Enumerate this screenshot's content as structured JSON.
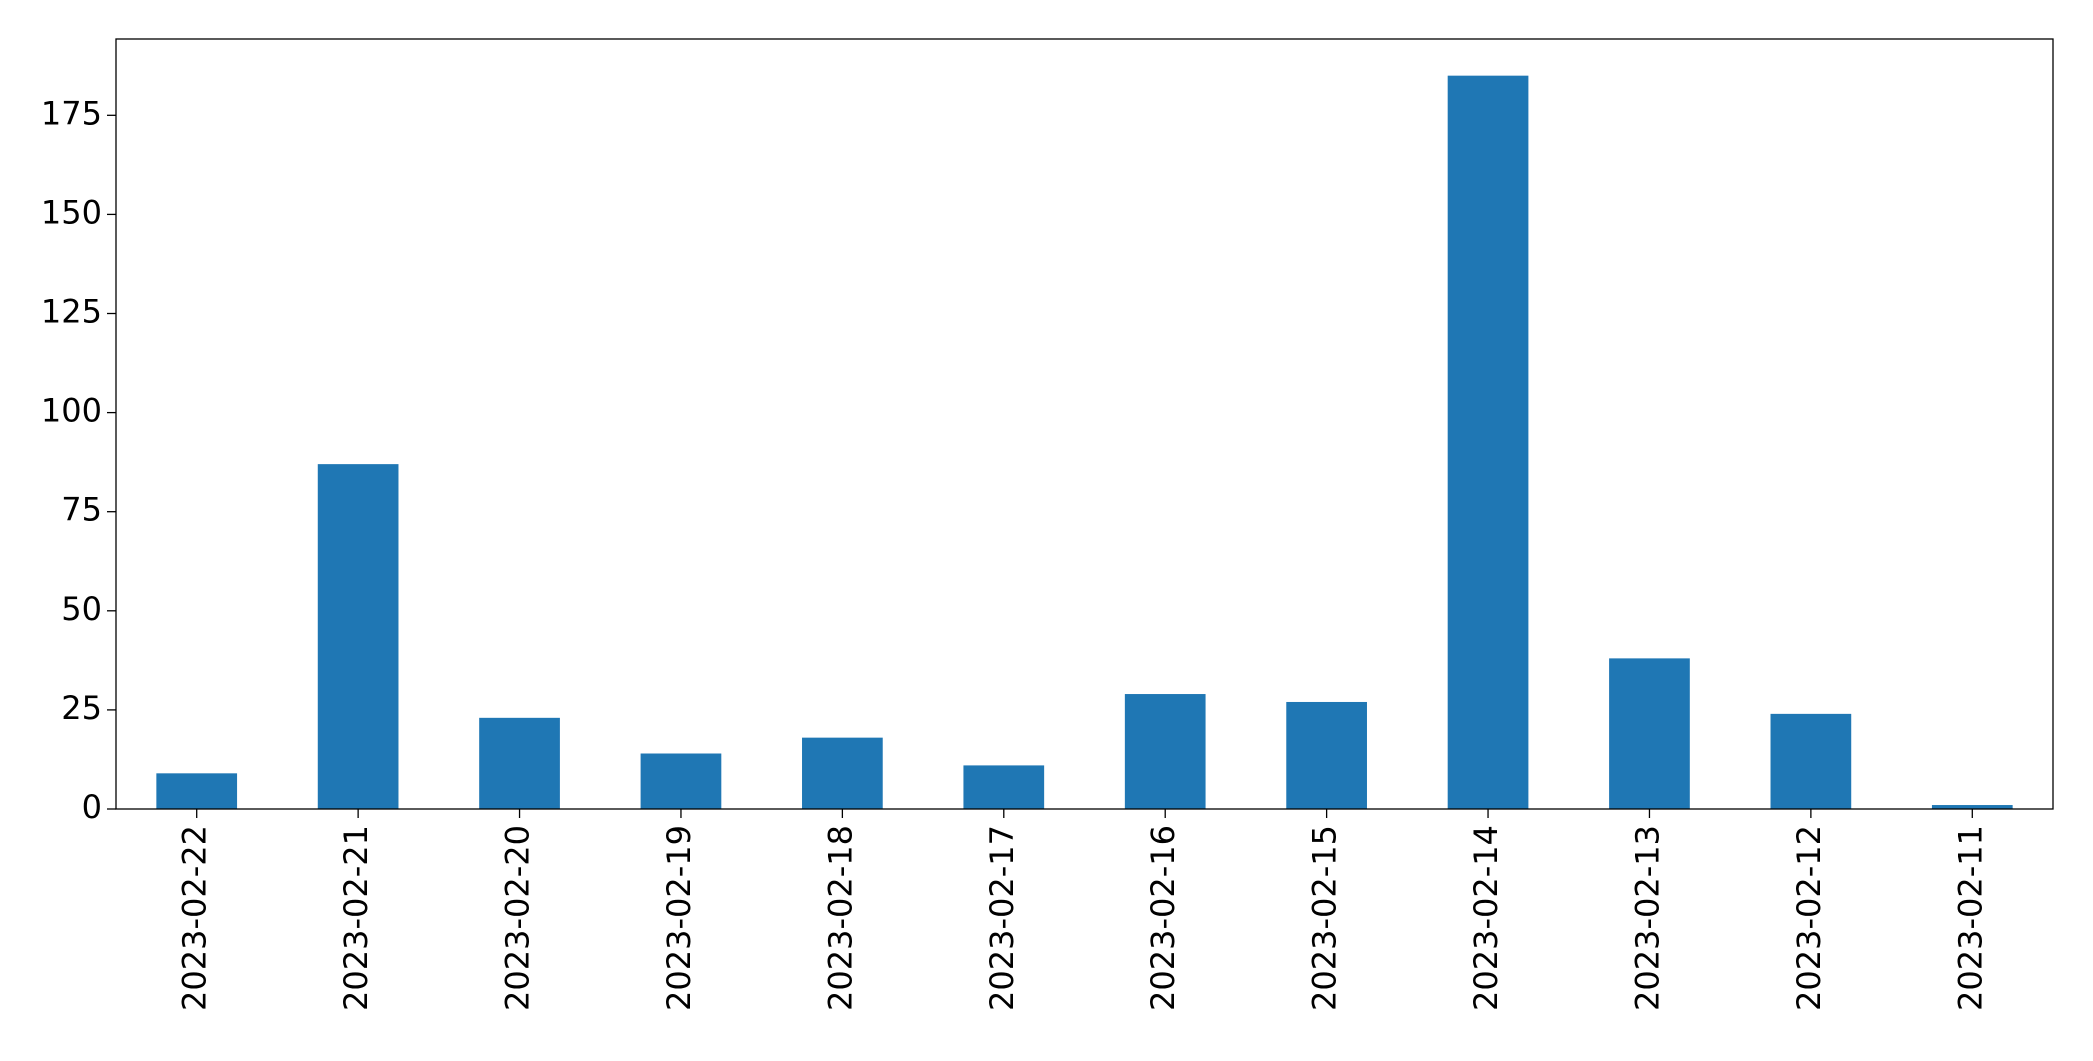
{
  "chart_data": {
    "type": "bar",
    "categories": [
      "2023-02-22",
      "2023-02-21",
      "2023-02-20",
      "2023-02-19",
      "2023-02-18",
      "2023-02-17",
      "2023-02-16",
      "2023-02-15",
      "2023-02-14",
      "2023-02-13",
      "2023-02-12",
      "2023-02-11"
    ],
    "values": [
      9,
      87,
      23,
      14,
      18,
      11,
      29,
      27,
      185,
      38,
      24,
      1
    ],
    "color": "#1f77b4",
    "ylim": [
      0,
      194.25
    ],
    "yticks": [
      0,
      25,
      50,
      75,
      100,
      125,
      150,
      175
    ],
    "grid": false
  }
}
